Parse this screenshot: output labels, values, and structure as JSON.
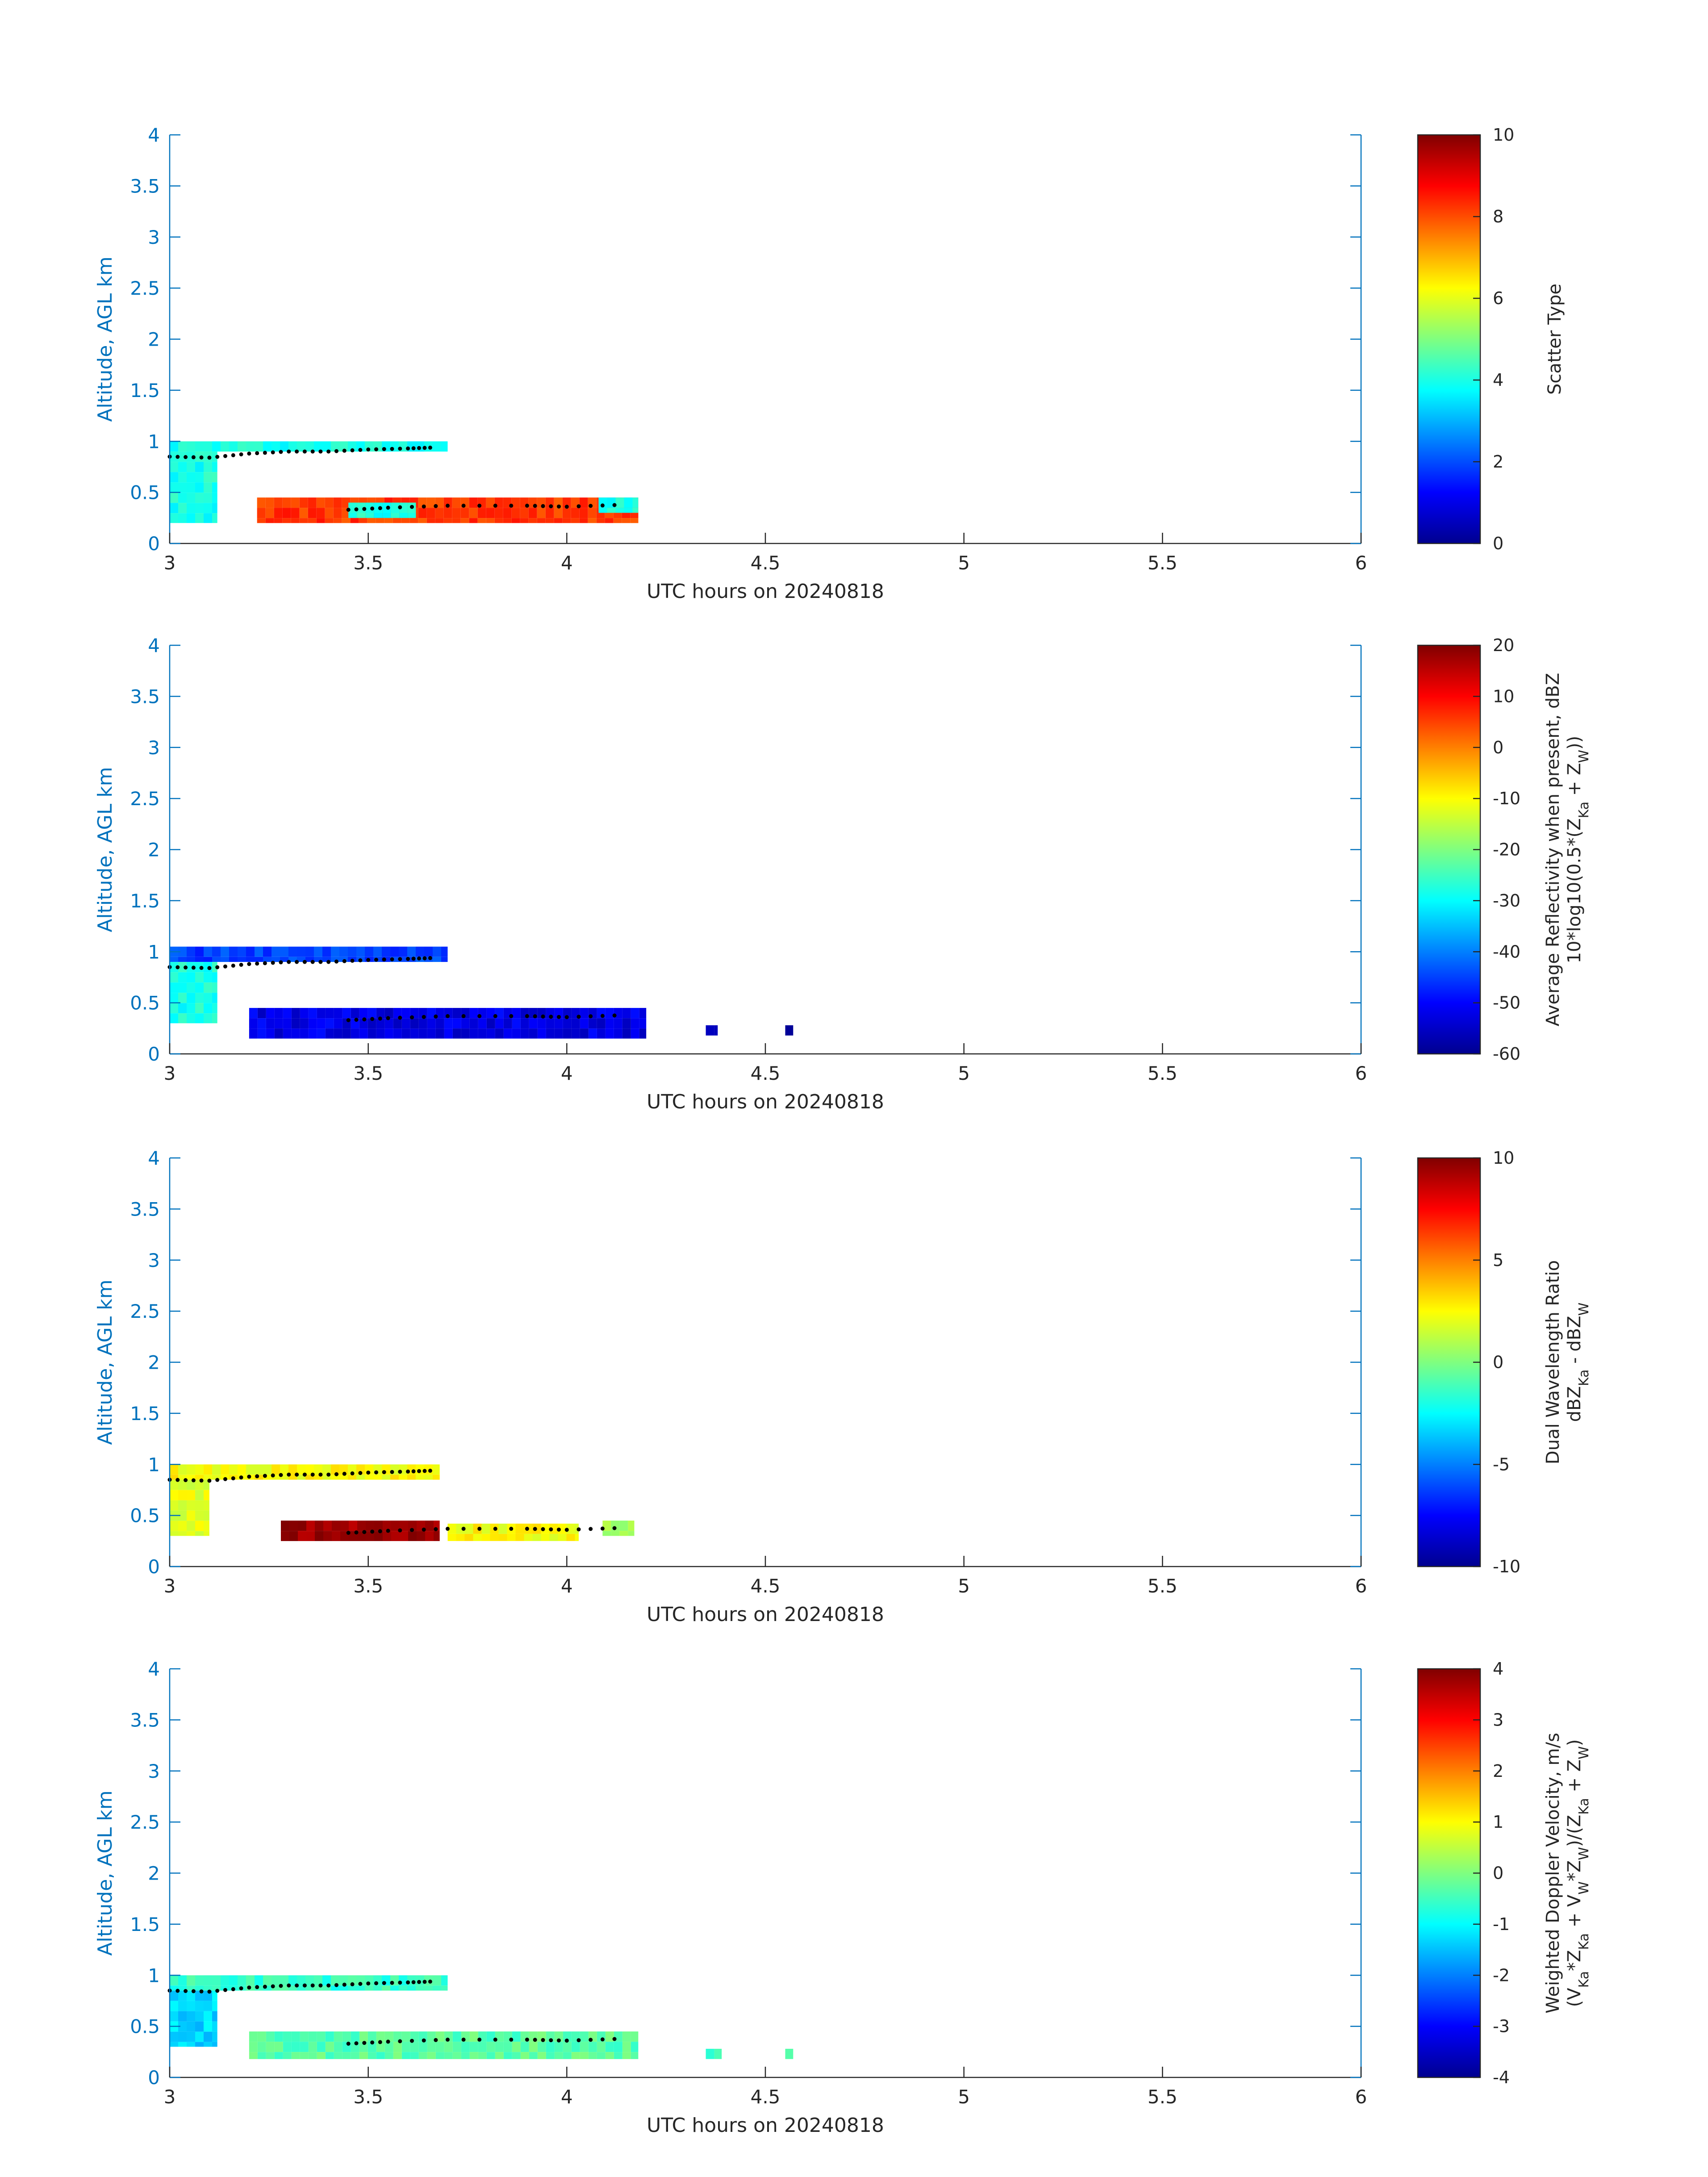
{
  "chart_data": [
    {
      "type": "heatmap",
      "xlabel": "UTC hours on 20240818",
      "ylabel": "Altitude, AGL km",
      "xlim": [
        3,
        6
      ],
      "ylim": [
        0,
        4
      ],
      "xticks": [
        "3",
        "3.5",
        "4",
        "4.5",
        "5",
        "5.5",
        "6"
      ],
      "yticks": [
        "0",
        "0.5",
        "1",
        "1.5",
        "2",
        "2.5",
        "3",
        "3.5",
        "4"
      ],
      "colorbar": {
        "label_lines": [
          "Scatter Type"
        ],
        "range": [
          0,
          10
        ],
        "ticks": [
          "0",
          "2",
          "4",
          "6",
          "8",
          "10"
        ]
      },
      "layers": [
        {
          "value": 4,
          "x": [
            3.0,
            3.7
          ],
          "y": [
            0.9,
            1.0
          ]
        },
        {
          "value": 4,
          "x": [
            3.0,
            3.12
          ],
          "y": [
            0.2,
            0.9
          ]
        },
        {
          "value": 8.2,
          "x": [
            3.22,
            4.18
          ],
          "y": [
            0.2,
            0.45
          ]
        },
        {
          "value": 4,
          "x": [
            3.45,
            3.62
          ],
          "y": [
            0.25,
            0.4
          ]
        },
        {
          "value": 4,
          "x": [
            4.08,
            4.18
          ],
          "y": [
            0.3,
            0.45
          ]
        }
      ],
      "dot_trace": [
        [
          3.0,
          0.85
        ],
        [
          3.1,
          0.84
        ],
        [
          3.2,
          0.88
        ],
        [
          3.3,
          0.9
        ],
        [
          3.4,
          0.9
        ],
        [
          3.5,
          0.92
        ],
        [
          3.6,
          0.93
        ],
        [
          3.67,
          0.94
        ]
      ],
      "dot_trace_lower": [
        [
          3.45,
          0.33
        ],
        [
          3.55,
          0.35
        ],
        [
          3.7,
          0.37
        ],
        [
          3.9,
          0.37
        ],
        [
          4.0,
          0.36
        ],
        [
          4.15,
          0.38
        ]
      ]
    },
    {
      "type": "heatmap",
      "xlabel": "UTC hours on 20240818",
      "ylabel": "Altitude, AGL km",
      "xlim": [
        3,
        6
      ],
      "ylim": [
        0,
        4
      ],
      "xticks": [
        "3",
        "3.5",
        "4",
        "4.5",
        "5",
        "5.5",
        "6"
      ],
      "yticks": [
        "0",
        "0.5",
        "1",
        "1.5",
        "2",
        "2.5",
        "3",
        "3.5",
        "4"
      ],
      "colorbar": {
        "label_lines": [
          "Average Reflectivity when present, dBZ",
          "10*log10(0.5*(Z",
          "Ka",
          " + Z",
          "W",
          "))"
        ],
        "range": [
          -60,
          20
        ],
        "ticks": [
          "-60",
          "-50",
          "-40",
          "-30",
          "-20",
          "-10",
          "0",
          "10",
          "20"
        ]
      },
      "layers": [
        {
          "value": -45,
          "x": [
            3.0,
            3.7
          ],
          "y": [
            0.9,
            1.05
          ]
        },
        {
          "value": -28,
          "x": [
            3.0,
            3.12
          ],
          "y": [
            0.3,
            0.9
          ]
        },
        {
          "value": -52,
          "x": [
            3.2,
            4.2
          ],
          "y": [
            0.15,
            0.45
          ]
        },
        {
          "value": -55,
          "x": [
            4.35,
            4.38
          ],
          "y": [
            0.18,
            0.28
          ]
        },
        {
          "value": -55,
          "x": [
            4.55,
            4.57
          ],
          "y": [
            0.18,
            0.28
          ]
        }
      ],
      "dot_trace": [
        [
          3.0,
          0.85
        ],
        [
          3.1,
          0.84
        ],
        [
          3.2,
          0.88
        ],
        [
          3.3,
          0.9
        ],
        [
          3.4,
          0.9
        ],
        [
          3.5,
          0.92
        ],
        [
          3.6,
          0.93
        ],
        [
          3.67,
          0.94
        ]
      ],
      "dot_trace_lower": [
        [
          3.45,
          0.33
        ],
        [
          3.55,
          0.35
        ],
        [
          3.7,
          0.37
        ],
        [
          3.9,
          0.37
        ],
        [
          4.0,
          0.36
        ],
        [
          4.15,
          0.38
        ]
      ]
    },
    {
      "type": "heatmap",
      "xlabel": "UTC hours on 20240818",
      "ylabel": "Altitude, AGL km",
      "xlim": [
        3,
        6
      ],
      "ylim": [
        0,
        4
      ],
      "xticks": [
        "3",
        "3.5",
        "4",
        "4.5",
        "5",
        "5.5",
        "6"
      ],
      "yticks": [
        "0",
        "0.5",
        "1",
        "1.5",
        "2",
        "2.5",
        "3",
        "3.5",
        "4"
      ],
      "colorbar": {
        "label_lines": [
          "Dual Wavelength Ratio",
          "dBZ",
          "Ka",
          " - dBZ",
          "W"
        ],
        "range": [
          -10,
          10
        ],
        "ticks": [
          "-10",
          "-5",
          "0",
          "5",
          "10"
        ]
      },
      "layers": [
        {
          "value": 2.5,
          "x": [
            3.0,
            3.68
          ],
          "y": [
            0.85,
            1.0
          ]
        },
        {
          "value": 2,
          "x": [
            3.0,
            3.1
          ],
          "y": [
            0.3,
            0.85
          ]
        },
        {
          "value": 9.5,
          "x": [
            3.28,
            3.68
          ],
          "y": [
            0.25,
            0.45
          ]
        },
        {
          "value": 2.5,
          "x": [
            3.7,
            4.03
          ],
          "y": [
            0.25,
            0.42
          ]
        },
        {
          "value": 0.5,
          "x": [
            4.09,
            4.17
          ],
          "y": [
            0.3,
            0.45
          ]
        }
      ],
      "dot_trace": [
        [
          3.0,
          0.85
        ],
        [
          3.1,
          0.84
        ],
        [
          3.2,
          0.88
        ],
        [
          3.3,
          0.9
        ],
        [
          3.4,
          0.9
        ],
        [
          3.5,
          0.92
        ],
        [
          3.6,
          0.93
        ],
        [
          3.67,
          0.94
        ]
      ],
      "dot_trace_lower": [
        [
          3.45,
          0.33
        ],
        [
          3.55,
          0.35
        ],
        [
          3.7,
          0.37
        ],
        [
          3.9,
          0.37
        ],
        [
          4.0,
          0.36
        ],
        [
          4.15,
          0.38
        ]
      ]
    },
    {
      "type": "heatmap",
      "xlabel": "UTC hours on 20240818",
      "ylabel": "Altitude, AGL km",
      "xlim": [
        3,
        6
      ],
      "ylim": [
        0,
        4
      ],
      "xticks": [
        "3",
        "3.5",
        "4",
        "4.5",
        "5",
        "5.5",
        "6"
      ],
      "yticks": [
        "0",
        "0.5",
        "1",
        "1.5",
        "2",
        "2.5",
        "3",
        "3.5",
        "4"
      ],
      "colorbar": {
        "label_lines": [
          "Weighted Doppler Velocity, m/s",
          "(V",
          "Ka",
          "*Z",
          "Ka",
          " + V",
          "W",
          "*Z",
          "W",
          ")/(Z",
          "Ka",
          " + Z",
          "W",
          ")"
        ],
        "range": [
          -4,
          4
        ],
        "ticks": [
          "-4",
          "-3",
          "-2",
          "-1",
          "0",
          "1",
          "2",
          "3",
          "4"
        ]
      },
      "layers": [
        {
          "value": -0.6,
          "x": [
            3.0,
            3.7
          ],
          "y": [
            0.85,
            1.0
          ]
        },
        {
          "value": -1.3,
          "x": [
            3.0,
            3.12
          ],
          "y": [
            0.3,
            0.85
          ]
        },
        {
          "value": -0.3,
          "x": [
            3.2,
            4.18
          ],
          "y": [
            0.18,
            0.45
          ]
        },
        {
          "value": -0.5,
          "x": [
            4.35,
            4.39
          ],
          "y": [
            0.18,
            0.28
          ]
        },
        {
          "value": -0.5,
          "x": [
            4.55,
            4.57
          ],
          "y": [
            0.18,
            0.28
          ]
        }
      ],
      "dot_trace": [
        [
          3.0,
          0.85
        ],
        [
          3.1,
          0.84
        ],
        [
          3.2,
          0.88
        ],
        [
          3.3,
          0.9
        ],
        [
          3.4,
          0.9
        ],
        [
          3.5,
          0.92
        ],
        [
          3.6,
          0.93
        ],
        [
          3.67,
          0.94
        ]
      ],
      "dot_trace_lower": [
        [
          3.45,
          0.33
        ],
        [
          3.55,
          0.35
        ],
        [
          3.7,
          0.37
        ],
        [
          3.9,
          0.37
        ],
        [
          4.0,
          0.36
        ],
        [
          4.15,
          0.38
        ]
      ]
    }
  ]
}
